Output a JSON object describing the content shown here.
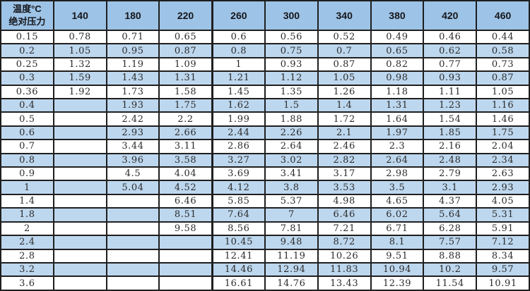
{
  "colors": {
    "header_bg": "#9dc3e6",
    "stripe_bg": "#bdd7ee",
    "row_bg": "#ffffff",
    "border_color": "#1f1f1f",
    "header_text": "#15161a",
    "cell_text": "#2b2b2b"
  },
  "chart_data": {
    "type": "table",
    "corner_header": [
      "温度°C",
      "绝对压力"
    ],
    "column_axis_label": "温度°C",
    "row_axis_label": "绝对压力",
    "columns": [
      "140",
      "180",
      "220",
      "260",
      "300",
      "340",
      "380",
      "420",
      "460"
    ],
    "rows": [
      {
        "label": "0.15",
        "values": [
          "0.78",
          "0.71",
          "0.65",
          "0.6",
          "0.56",
          "0.52",
          "0.49",
          "0.46",
          "0.44"
        ]
      },
      {
        "label": "0.2",
        "values": [
          "1.05",
          "0.95",
          "0.87",
          "0.8",
          "0.75",
          "0.7",
          "0.65",
          "0.62",
          "0.58"
        ]
      },
      {
        "label": "0.25",
        "values": [
          "1.32",
          "1.19",
          "1.09",
          "1",
          "0.93",
          "0.87",
          "0.82",
          "0.77",
          "0.73"
        ]
      },
      {
        "label": "0.3",
        "values": [
          "1.59",
          "1.43",
          "1.31",
          "1.21",
          "1.12",
          "1.05",
          "0.98",
          "0.93",
          "0.87"
        ]
      },
      {
        "label": "0.36",
        "values": [
          "1.92",
          "1.73",
          "1.58",
          "1.45",
          "1.35",
          "1.26",
          "1.18",
          "1.11",
          "1.05"
        ]
      },
      {
        "label": "0.4",
        "values": [
          "",
          "1.93",
          "1.75",
          "1.62",
          "1.5",
          "1.4",
          "1.31",
          "1.23",
          "1.16"
        ]
      },
      {
        "label": "0.5",
        "values": [
          "",
          "2.42",
          "2.2",
          "1.99",
          "1.88",
          "1.72",
          "1.64",
          "1.54",
          "1.46"
        ]
      },
      {
        "label": "0.6",
        "values": [
          "",
          "2.93",
          "2.66",
          "2.44",
          "2.26",
          "2.1",
          "1.97",
          "1.85",
          "1.75"
        ]
      },
      {
        "label": "0.7",
        "values": [
          "",
          "3.44",
          "3.11",
          "2.86",
          "2.64",
          "2.46",
          "2.3",
          "2.16",
          "2.04"
        ]
      },
      {
        "label": "0.8",
        "values": [
          "",
          "3.96",
          "3.58",
          "3.27",
          "3.02",
          "2.82",
          "2.64",
          "2.48",
          "2.34"
        ]
      },
      {
        "label": "0.9",
        "values": [
          "",
          "4.5",
          "4.04",
          "3.69",
          "3.41",
          "3.17",
          "2.98",
          "2.79",
          "2.63"
        ]
      },
      {
        "label": "1",
        "values": [
          "",
          "5.04",
          "4.52",
          "4.12",
          "3.8",
          "3.53",
          "3.5",
          "3.1",
          "2.93"
        ]
      },
      {
        "label": "1.4",
        "values": [
          "",
          "",
          "6.46",
          "5.85",
          "5.37",
          "4.98",
          "4.65",
          "4.37",
          "4.05"
        ]
      },
      {
        "label": "1.8",
        "values": [
          "",
          "",
          "8.51",
          "7.64",
          "7",
          "6.46",
          "6.02",
          "5.64",
          "5.31"
        ]
      },
      {
        "label": "2",
        "values": [
          "",
          "",
          "9.58",
          "8.56",
          "7.81",
          "7.21",
          "6.71",
          "6.28",
          "5.91"
        ]
      },
      {
        "label": "2.4",
        "values": [
          "",
          "",
          "",
          "10.45",
          "9.48",
          "8.72",
          "8.1",
          "7.57",
          "7.12"
        ]
      },
      {
        "label": "2.8",
        "values": [
          "",
          "",
          "",
          "12.41",
          "11.19",
          "10.26",
          "9.51",
          "8.88",
          "8.34"
        ]
      },
      {
        "label": "3.2",
        "values": [
          "",
          "",
          "",
          "14.46",
          "12.94",
          "11.83",
          "10.94",
          "10.2",
          "9.57"
        ]
      },
      {
        "label": "3.6",
        "values": [
          "",
          "",
          "",
          "16.61",
          "14.76",
          "13.43",
          "12.39",
          "11.54",
          "10.91"
        ]
      }
    ]
  }
}
